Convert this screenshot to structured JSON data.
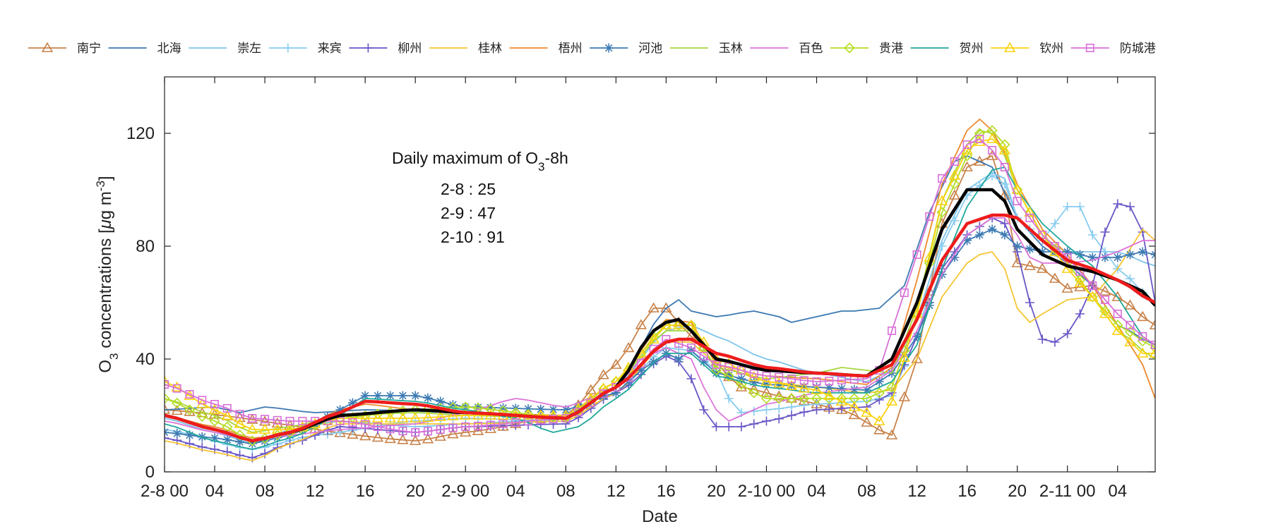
{
  "chart_data": {
    "type": "line",
    "xlabel": "Date",
    "ylabel": "O3 concentrations [μg m-3]",
    "ylabel_parts": {
      "o": "O",
      "sub": "3",
      "mid": " concentrations [",
      "mu": "μ",
      "g": "g m",
      "sup": "-3",
      "close": "]"
    },
    "xlim": [
      0,
      79
    ],
    "ylim": [
      0,
      140
    ],
    "yticks": [
      0,
      40,
      80,
      120
    ],
    "xticks": [
      {
        "x": 0,
        "label": "2-8 00"
      },
      {
        "x": 4,
        "label": "04"
      },
      {
        "x": 8,
        "label": "08"
      },
      {
        "x": 12,
        "label": "12"
      },
      {
        "x": 16,
        "label": "16"
      },
      {
        "x": 20,
        "label": "20"
      },
      {
        "x": 24,
        "label": "2-9 00"
      },
      {
        "x": 28,
        "label": "04"
      },
      {
        "x": 32,
        "label": "08"
      },
      {
        "x": 36,
        "label": "12"
      },
      {
        "x": 40,
        "label": "16"
      },
      {
        "x": 44,
        "label": "20"
      },
      {
        "x": 48,
        "label": "2-10 00"
      },
      {
        "x": 52,
        "label": "04"
      },
      {
        "x": 56,
        "label": "08"
      },
      {
        "x": 60,
        "label": "12"
      },
      {
        "x": 64,
        "label": "16"
      },
      {
        "x": 68,
        "label": "20"
      },
      {
        "x": 72,
        "label": "2-11 00"
      },
      {
        "x": 76,
        "label": "04"
      }
    ],
    "annotation": {
      "title_pre": "Daily maximum of O",
      "title_sub": "3",
      "title_post": "-8h",
      "lines": [
        "2-8 : 25",
        "2-9 : 47",
        "2-10 : 91"
      ]
    },
    "series": [
      {
        "name": "南宁",
        "color": "#c8824a",
        "marker": "triangle",
        "kx": [
          0,
          20,
          24,
          32,
          36,
          39,
          40,
          42,
          46,
          50,
          54,
          58,
          60,
          62,
          64,
          66,
          67,
          68,
          70,
          72,
          74,
          76,
          79
        ],
        "ky": [
          22,
          11,
          14,
          20,
          38,
          58,
          58,
          48,
          30,
          26,
          22,
          13,
          40,
          88,
          108,
          112,
          98,
          74,
          72,
          65,
          66,
          62,
          52
        ]
      },
      {
        "name": "北海",
        "color": "#3b78b2",
        "marker": "none",
        "kx": [
          0,
          4,
          6,
          8,
          12,
          16,
          24,
          32,
          36,
          40,
          41,
          42,
          44,
          47,
          49,
          50,
          52,
          54,
          55,
          57,
          59,
          61,
          63,
          64,
          66,
          68,
          70,
          72,
          74,
          76,
          79
        ],
        "ky": [
          22,
          23,
          21,
          23,
          21,
          22,
          21,
          20,
          30,
          58,
          61,
          57,
          55,
          57,
          55,
          53,
          55,
          57,
          57,
          58,
          66,
          92,
          110,
          112,
          108,
          90,
          80,
          74,
          66,
          52,
          45
        ]
      },
      {
        "name": "崇左",
        "color": "#7ec4ea",
        "marker": "none",
        "kx": [
          0,
          4,
          7,
          10,
          14,
          20,
          24,
          32,
          36,
          40,
          42,
          44,
          48,
          52,
          56,
          58,
          60,
          62,
          64,
          66,
          67,
          68,
          70,
          72,
          74,
          76,
          79
        ],
        "ky": [
          19,
          14,
          10,
          15,
          18,
          16,
          17,
          19,
          30,
          50,
          52,
          48,
          40,
          35,
          32,
          36,
          54,
          82,
          100,
          106,
          104,
          90,
          82,
          78,
          78,
          78,
          73
        ]
      },
      {
        "name": "来宾",
        "color": "#87ccf0",
        "marker": "plus",
        "kx": [
          0,
          7,
          12,
          20,
          24,
          32,
          36,
          40,
          42,
          44,
          45,
          46,
          48,
          52,
          56,
          58,
          60,
          62,
          64,
          66,
          67,
          68,
          70,
          71,
          72,
          73,
          74,
          76,
          79
        ],
        "ky": [
          15,
          8,
          13,
          18,
          19,
          18,
          28,
          44,
          43,
          36,
          26,
          21,
          22,
          24,
          25,
          27,
          48,
          80,
          98,
          105,
          102,
          90,
          82,
          88,
          94,
          94,
          84,
          72,
          60
        ]
      },
      {
        "name": "柳州",
        "color": "#6a56c6",
        "marker": "plus",
        "kx": [
          0,
          4,
          7,
          10,
          14,
          20,
          24,
          32,
          36,
          40,
          41,
          42,
          43,
          44,
          46,
          48,
          52,
          56,
          58,
          60,
          62,
          64,
          66,
          67,
          68,
          69,
          70,
          71,
          72,
          73,
          74,
          75,
          76,
          77,
          78,
          79
        ],
        "ky": [
          12,
          8,
          5,
          10,
          16,
          14,
          16,
          17,
          28,
          41,
          39,
          33,
          22,
          16,
          16,
          18,
          22,
          23,
          28,
          48,
          72,
          84,
          90,
          88,
          78,
          60,
          47,
          46,
          49,
          56,
          66,
          85,
          95,
          94,
          85,
          60
        ]
      },
      {
        "name": "桂林",
        "color": "#f5c531",
        "marker": "none",
        "kx": [
          0,
          4,
          7,
          10,
          14,
          20,
          24,
          32,
          36,
          40,
          42,
          44,
          48,
          52,
          56,
          58,
          60,
          62,
          64,
          65,
          66,
          67,
          68,
          69,
          70,
          72,
          74,
          76,
          78,
          79
        ],
        "ky": [
          11,
          7,
          4,
          10,
          17,
          17,
          17,
          18,
          28,
          46,
          46,
          38,
          32,
          30,
          28,
          29,
          40,
          62,
          74,
          77,
          78,
          72,
          58,
          53,
          56,
          61,
          62,
          72,
          86,
          82
        ]
      },
      {
        "name": "梧州",
        "color": "#ee8a2e",
        "marker": "none",
        "kx": [
          0,
          4,
          7,
          10,
          14,
          16,
          20,
          24,
          32,
          36,
          40,
          42,
          44,
          48,
          52,
          56,
          58,
          60,
          62,
          64,
          65,
          66,
          67,
          68,
          70,
          72,
          74,
          76,
          78,
          79
        ],
        "ky": [
          20,
          16,
          12,
          13,
          22,
          24,
          22,
          21,
          20,
          32,
          54,
          53,
          38,
          34,
          33,
          31,
          37,
          68,
          102,
          121,
          125,
          121,
          113,
          102,
          86,
          77,
          66,
          52,
          38,
          26
        ]
      },
      {
        "name": "河池",
        "color": "#3d7bb3",
        "marker": "star",
        "kx": [
          0,
          4,
          7,
          10,
          12,
          14,
          16,
          20,
          24,
          32,
          36,
          38,
          40,
          41,
          42,
          44,
          48,
          52,
          56,
          58,
          60,
          62,
          64,
          66,
          67,
          68,
          70,
          72,
          74,
          76,
          78,
          79
        ],
        "ky": [
          14,
          12,
          10,
          13,
          17,
          22,
          27,
          27,
          23,
          22,
          28,
          36,
          42,
          40,
          43,
          35,
          31,
          30,
          29,
          35,
          48,
          70,
          82,
          86,
          84,
          80,
          78,
          78,
          76,
          76,
          78,
          77
        ]
      },
      {
        "name": "玉林",
        "color": "#a6d63c",
        "marker": "none",
        "kx": [
          0,
          4,
          7,
          10,
          14,
          20,
          24,
          32,
          36,
          40,
          42,
          44,
          48,
          52,
          54,
          56,
          58,
          60,
          62,
          64,
          65,
          66,
          67,
          68,
          70,
          72,
          74,
          76,
          79
        ],
        "ky": [
          26,
          20,
          14,
          16,
          20,
          21,
          20,
          19,
          32,
          50,
          50,
          37,
          33,
          35,
          37,
          36,
          35,
          58,
          96,
          116,
          121,
          120,
          112,
          100,
          84,
          74,
          62,
          50,
          40
        ]
      },
      {
        "name": "百色",
        "color": "#dc74d9",
        "marker": "none",
        "kx": [
          0,
          4,
          7,
          10,
          14,
          20,
          24,
          28,
          32,
          36,
          38,
          40,
          42,
          43,
          44,
          45,
          46,
          48,
          52,
          56,
          58,
          60,
          62,
          64,
          66,
          67,
          68,
          69,
          70,
          72,
          74,
          76,
          78,
          79
        ],
        "ky": [
          18,
          14,
          11,
          13,
          15,
          17,
          21,
          26,
          23,
          30,
          40,
          44,
          40,
          30,
          22,
          18,
          20,
          24,
          28,
          30,
          36,
          50,
          70,
          84,
          90,
          90,
          84,
          76,
          74,
          74,
          75,
          78,
          82,
          82
        ]
      },
      {
        "name": "贵港",
        "color": "#b5dd25",
        "marker": "diamond",
        "kx": [
          0,
          4,
          7,
          10,
          14,
          20,
          24,
          32,
          36,
          40,
          42,
          44,
          48,
          52,
          56,
          58,
          60,
          62,
          64,
          65,
          66,
          67,
          68,
          70,
          72,
          74,
          76,
          79
        ],
        "ky": [
          26,
          18,
          11,
          14,
          19,
          22,
          23,
          19,
          32,
          52,
          52,
          36,
          26,
          26,
          26,
          30,
          56,
          92,
          112,
          120,
          121,
          116,
          100,
          84,
          74,
          62,
          52,
          44
        ]
      },
      {
        "name": "贺州",
        "color": "#20a89a",
        "marker": "none",
        "kx": [
          0,
          4,
          7,
          10,
          14,
          16,
          20,
          24,
          28,
          31,
          33,
          36,
          40,
          42,
          44,
          48,
          52,
          56,
          58,
          60,
          62,
          64,
          66,
          67,
          68,
          70,
          72,
          74,
          76,
          78,
          79
        ],
        "ky": [
          17,
          11,
          8,
          12,
          20,
          26,
          25,
          22,
          19,
          14,
          16,
          26,
          42,
          42,
          34,
          30,
          28,
          28,
          32,
          45,
          72,
          94,
          107,
          108,
          100,
          88,
          80,
          73,
          62,
          48,
          45
        ]
      },
      {
        "name": "钦州",
        "color": "#fad20e",
        "marker": "triangle",
        "kx": [
          0,
          4,
          7,
          10,
          14,
          20,
          24,
          32,
          36,
          38,
          40,
          42,
          44,
          48,
          52,
          54,
          56,
          57,
          58,
          60,
          62,
          64,
          65,
          66,
          67,
          68,
          70,
          72,
          74,
          76,
          78,
          79
        ],
        "ky": [
          32,
          22,
          15,
          15,
          19,
          19,
          20,
          20,
          32,
          42,
          52,
          52,
          40,
          32,
          29,
          25,
          21,
          18,
          25,
          56,
          96,
          114,
          117,
          118,
          114,
          100,
          84,
          72,
          62,
          50,
          42,
          42
        ]
      },
      {
        "name": "防城港",
        "color": "#d870d8",
        "marker": "square",
        "kx": [
          0,
          4,
          7,
          10,
          14,
          20,
          24,
          32,
          36,
          40,
          42,
          44,
          48,
          52,
          56,
          57,
          58,
          60,
          62,
          64,
          65,
          66,
          67,
          68,
          70,
          72,
          74,
          76,
          78,
          79
        ],
        "ky": [
          31,
          24,
          19,
          18,
          18,
          14,
          16,
          19,
          30,
          47,
          44,
          38,
          34,
          32,
          33,
          36,
          50,
          77,
          104,
          116,
          118,
          114,
          108,
          96,
          84,
          76,
          66,
          56,
          48,
          45
        ]
      }
    ],
    "mean_series": [
      {
        "name": "mean-black",
        "color": "#000000",
        "width": 4.5,
        "kx": [
          0,
          4,
          7,
          10,
          14,
          20,
          24,
          32,
          36,
          39,
          40,
          41,
          42,
          44,
          48,
          52,
          56,
          58,
          60,
          62,
          64,
          66,
          67,
          68,
          70,
          72,
          74,
          76,
          78,
          79
        ],
        "ky": [
          20,
          15,
          11,
          14,
          20,
          22,
          21,
          19,
          30,
          50,
          53,
          54,
          50,
          40,
          36,
          35,
          34,
          40,
          60,
          86,
          100,
          100,
          96,
          86,
          77,
          73,
          71,
          68,
          64,
          59
        ]
      },
      {
        "name": "mean-red",
        "color": "#ee1c1c",
        "width": 4.5,
        "kx": [
          0,
          4,
          7,
          10,
          14,
          16,
          20,
          24,
          32,
          36,
          40,
          41,
          42,
          44,
          48,
          52,
          56,
          58,
          60,
          62,
          64,
          66,
          67,
          68,
          70,
          72,
          74,
          76,
          79
        ],
        "ky": [
          20,
          15,
          11,
          14,
          21,
          25,
          24,
          21,
          19,
          30,
          46,
          47,
          47,
          42,
          37,
          35,
          34,
          38,
          54,
          75,
          88,
          91,
          91,
          90,
          82,
          75,
          72,
          68,
          60
        ]
      }
    ]
  }
}
